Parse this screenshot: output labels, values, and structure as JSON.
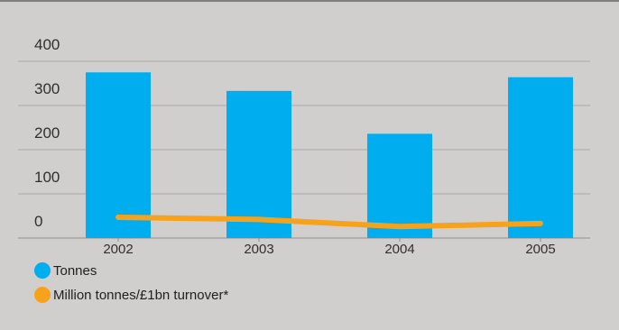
{
  "chart_data": {
    "type": "bar",
    "categories": [
      "2002",
      "2003",
      "2004",
      "2005"
    ],
    "series": [
      {
        "name": "Tonnes",
        "type": "bar",
        "values": [
          375,
          333,
          236,
          364
        ],
        "color": "#00adef"
      },
      {
        "name": "Million tonnes/£1bn turnover*",
        "type": "line",
        "values": [
          47,
          42,
          26,
          33
        ],
        "color": "#f7a21b"
      }
    ],
    "y_ticks": [
      "400",
      "300",
      "200",
      "100",
      "0"
    ],
    "ylim": [
      0,
      400
    ],
    "grid": true,
    "legend": "bottom-left"
  }
}
